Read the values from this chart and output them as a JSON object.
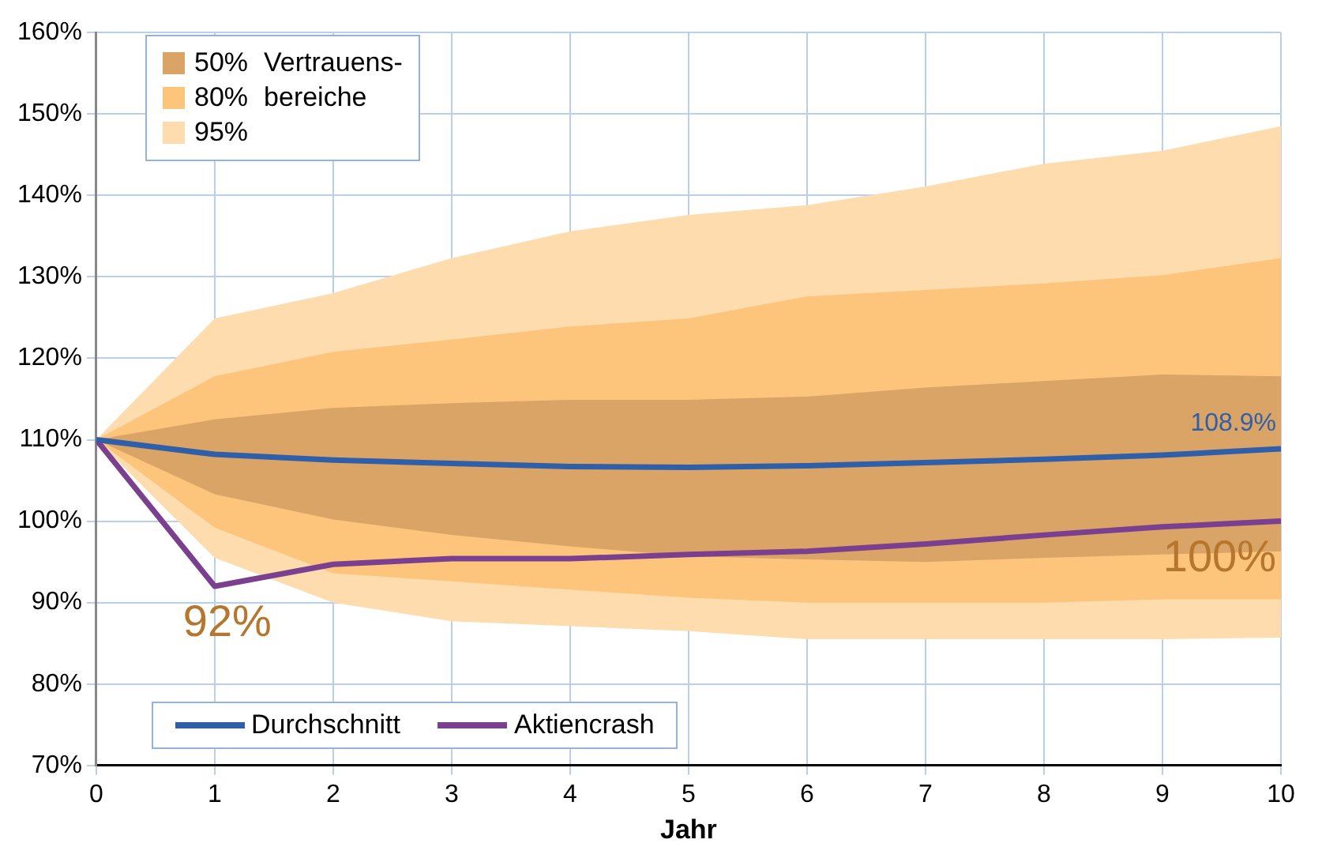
{
  "chart_data": {
    "type": "line",
    "xlabel": "Jahr",
    "legend_title": "Vertrauens-\nbereiche",
    "legend": "top left",
    "grid": true,
    "x": [
      0,
      1,
      2,
      3,
      4,
      5,
      6,
      7,
      8,
      9,
      10
    ],
    "xlim": [
      0,
      10
    ],
    "xticks": [
      0,
      1,
      2,
      3,
      4,
      5,
      6,
      7,
      8,
      9,
      10
    ],
    "ylim": [
      70,
      160
    ],
    "yticks": [
      {
        "value": 70,
        "label": "70%"
      },
      {
        "value": 80,
        "label": "80%"
      },
      {
        "value": 90,
        "label": "90%"
      },
      {
        "value": 100,
        "label": "100%"
      },
      {
        "value": 110,
        "label": "110%"
      },
      {
        "value": 120,
        "label": "120%"
      },
      {
        "value": 130,
        "label": "130%"
      },
      {
        "value": 140,
        "label": "140%"
      },
      {
        "value": 150,
        "label": "150%"
      },
      {
        "value": 160,
        "label": "160%"
      }
    ],
    "series": [
      {
        "name": "95%",
        "type": "area",
        "color": "#fedcae",
        "values": [
          null,
          null,
          null,
          null,
          null,
          null,
          null,
          null,
          null,
          null,
          null
        ],
        "lower": [
          110,
          95.5,
          90,
          87.7,
          87.1,
          86.5,
          85.5,
          85.5,
          85.5,
          85.5,
          85.7
        ],
        "upper": [
          110,
          124.9,
          128,
          132.3,
          135.6,
          137.6,
          138.8,
          141.1,
          143.9,
          145.5,
          148.5
        ]
      },
      {
        "name": "80%",
        "type": "area",
        "color": "#fdc47c",
        "values": [
          null,
          null,
          null,
          null,
          null,
          null,
          null,
          null,
          null,
          null,
          null
        ],
        "lower": [
          110,
          99.2,
          93.6,
          92.6,
          91.6,
          90.6,
          90,
          90,
          90,
          90.4,
          90.4
        ],
        "upper": [
          110,
          117.8,
          120.8,
          122.3,
          123.9,
          124.9,
          127.6,
          128.4,
          129.2,
          130.2,
          132.3
        ]
      },
      {
        "name": "50%",
        "type": "area",
        "color": "#d9a466",
        "values": [
          null,
          null,
          null,
          null,
          null,
          null,
          null,
          null,
          null,
          null,
          null
        ],
        "lower": [
          110,
          103.3,
          100.2,
          98.3,
          96.9,
          95.7,
          95.3,
          95,
          95.5,
          95.9,
          96.3
        ],
        "upper": [
          110,
          112.5,
          113.9,
          114.5,
          114.9,
          114.9,
          115.3,
          116.4,
          117.2,
          118,
          117.8
        ]
      },
      {
        "name": "Durchschnitt",
        "type": "line",
        "color": "#2e5fa8",
        "values": [
          110,
          108.2,
          107.5,
          107.1,
          106.7,
          106.6,
          106.8,
          107.2,
          107.6,
          108.1,
          108.9
        ],
        "value_labels": [
          null,
          null,
          null,
          null,
          null,
          null,
          null,
          null,
          null,
          null,
          "108.9%"
        ]
      },
      {
        "name": "Aktiencrash",
        "type": "line",
        "color": "#7b3f8f",
        "values": [
          110,
          92,
          94.7,
          95.4,
          95.4,
          95.9,
          96.3,
          97.2,
          98.3,
          99.3,
          100
        ],
        "value_labels": [
          null,
          "92%",
          null,
          null,
          null,
          null,
          null,
          null,
          null,
          null,
          "100%"
        ]
      }
    ]
  }
}
